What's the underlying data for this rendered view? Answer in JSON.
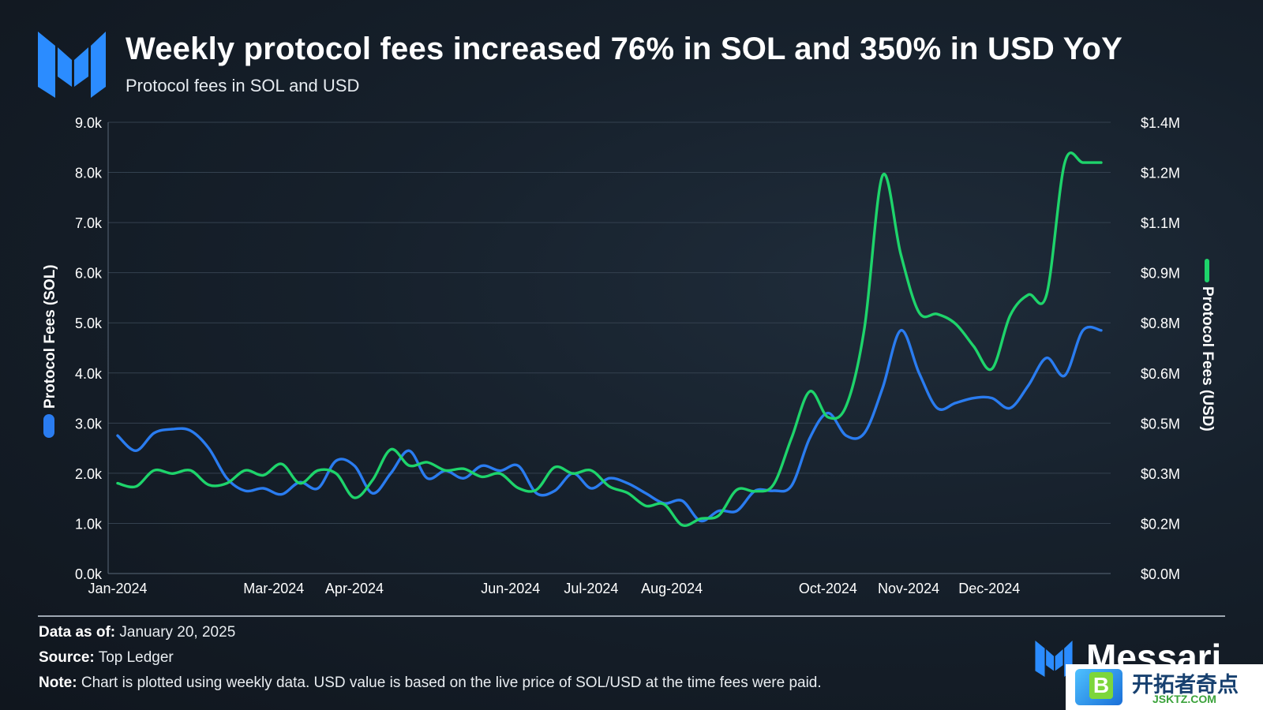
{
  "header": {
    "title": "Weekly protocol fees increased 76% in SOL and 350% in USD YoY",
    "subtitle": "Protocol fees in SOL and USD"
  },
  "colors": {
    "sol": "#2a7cf0",
    "usd": "#1ed46b",
    "logo": "#2b8cff",
    "grid": "#3a4756",
    "text": "#ffffff"
  },
  "chart_data": {
    "type": "line",
    "title": "Weekly protocol fees increased 76% in SOL and 350% in USD YoY",
    "subtitle": "Protocol fees in SOL and USD",
    "x_tick_labels": [
      "Jan-2024",
      "Mar-2024",
      "Apr-2024",
      "Jun-2024",
      "Jul-2024",
      "Aug-2024",
      "Oct-2024",
      "Nov-2024",
      "Dec-2024"
    ],
    "y_left": {
      "label": "Protocol Fees (SOL)",
      "ylim": [
        0,
        9000
      ],
      "tick_labels": [
        "0.0k",
        "1.0k",
        "2.0k",
        "3.0k",
        "4.0k",
        "5.0k",
        "6.0k",
        "7.0k",
        "8.0k",
        "9.0k"
      ]
    },
    "y_right": {
      "label": "Protocol Fees (USD)",
      "ylim": [
        0,
        1400000
      ],
      "tick_labels": [
        "$0.0M",
        "$0.2M",
        "$0.3M",
        "$0.5M",
        "$0.6M",
        "$0.8M",
        "$0.9M",
        "$1.1M",
        "$1.2M",
        "$1.4M"
      ]
    },
    "grid": true,
    "series": [
      {
        "name": "Protocol Fees (SOL)",
        "axis": "left",
        "color": "#2a7cf0",
        "x": [
          "2024-01-01",
          "2024-01-08",
          "2024-01-15",
          "2024-01-22",
          "2024-01-29",
          "2024-02-05",
          "2024-02-12",
          "2024-02-19",
          "2024-02-26",
          "2024-03-04",
          "2024-03-11",
          "2024-03-18",
          "2024-03-25",
          "2024-04-01",
          "2024-04-08",
          "2024-04-15",
          "2024-04-22",
          "2024-04-29",
          "2024-05-06",
          "2024-05-13",
          "2024-05-20",
          "2024-05-27",
          "2024-06-03",
          "2024-06-10",
          "2024-06-17",
          "2024-06-24",
          "2024-07-01",
          "2024-07-08",
          "2024-07-15",
          "2024-07-22",
          "2024-07-29",
          "2024-08-05",
          "2024-08-12",
          "2024-08-19",
          "2024-08-26",
          "2024-09-02",
          "2024-09-09",
          "2024-09-16",
          "2024-09-23",
          "2024-09-30",
          "2024-10-07",
          "2024-10-14",
          "2024-10-21",
          "2024-10-28",
          "2024-11-04",
          "2024-11-11",
          "2024-11-18",
          "2024-11-25",
          "2024-12-02",
          "2024-12-09",
          "2024-12-16",
          "2024-12-23",
          "2024-12-30",
          "2025-01-06",
          "2025-01-13"
        ],
        "values": [
          2750,
          2450,
          2800,
          2880,
          2850,
          2500,
          1900,
          1650,
          1700,
          1580,
          1820,
          1700,
          2250,
          2150,
          1600,
          2000,
          2450,
          1900,
          2050,
          1900,
          2150,
          2050,
          2150,
          1600,
          1650,
          2000,
          1700,
          1900,
          1800,
          1600,
          1400,
          1450,
          1050,
          1250,
          1250,
          1650,
          1650,
          1750,
          2700,
          3200,
          2750,
          2800,
          3700,
          4850,
          4000,
          3300,
          3400,
          3500,
          3500,
          3300,
          3750,
          4300,
          3950,
          4850,
          4850
        ]
      },
      {
        "name": "Protocol Fees (USD)",
        "axis": "right",
        "color": "#1ed46b",
        "x": [
          "2024-01-01",
          "2024-01-08",
          "2024-01-15",
          "2024-01-22",
          "2024-01-29",
          "2024-02-05",
          "2024-02-12",
          "2024-02-19",
          "2024-02-26",
          "2024-03-04",
          "2024-03-11",
          "2024-03-18",
          "2024-03-25",
          "2024-04-01",
          "2024-04-08",
          "2024-04-15",
          "2024-04-22",
          "2024-04-29",
          "2024-05-06",
          "2024-05-13",
          "2024-05-20",
          "2024-05-27",
          "2024-06-03",
          "2024-06-10",
          "2024-06-17",
          "2024-06-24",
          "2024-07-01",
          "2024-07-08",
          "2024-07-15",
          "2024-07-22",
          "2024-07-29",
          "2024-08-05",
          "2024-08-12",
          "2024-08-19",
          "2024-08-26",
          "2024-09-02",
          "2024-09-09",
          "2024-09-16",
          "2024-09-23",
          "2024-09-30",
          "2024-10-07",
          "2024-10-14",
          "2024-10-21",
          "2024-10-28",
          "2024-11-04",
          "2024-11-11",
          "2024-11-18",
          "2024-11-25",
          "2024-12-02",
          "2024-12-09",
          "2024-12-16",
          "2024-12-23",
          "2024-12-30",
          "2025-01-06",
          "2025-01-13"
        ],
        "values": [
          280000,
          270000,
          320000,
          310000,
          320000,
          275000,
          280000,
          320000,
          305000,
          340000,
          280000,
          320000,
          310000,
          235000,
          290000,
          385000,
          335000,
          345000,
          320000,
          325000,
          300000,
          310000,
          265000,
          260000,
          330000,
          310000,
          320000,
          270000,
          250000,
          210000,
          215000,
          150000,
          170000,
          180000,
          260000,
          255000,
          275000,
          420000,
          565000,
          485000,
          520000,
          760000,
          1235000,
          990000,
          810000,
          805000,
          775000,
          705000,
          635000,
          800000,
          865000,
          865000,
          1275000,
          1275000,
          1275000
        ]
      }
    ]
  },
  "footer": {
    "data_as_of_label": "Data as of:",
    "data_as_of_value": "January 20, 2025",
    "source_label": "Source:",
    "source_value": "Top Ledger",
    "note_label": "Note:",
    "note_value": "Chart is plotted using weekly data. USD value is based on the live price of SOL/USD at the time fees were paid."
  },
  "brand": {
    "name": "Messari",
    "icon": "messari-logo-icon"
  },
  "watermark": {
    "b": "B",
    "cn": "开拓者奇点",
    "url": "JSKTZ.COM"
  }
}
